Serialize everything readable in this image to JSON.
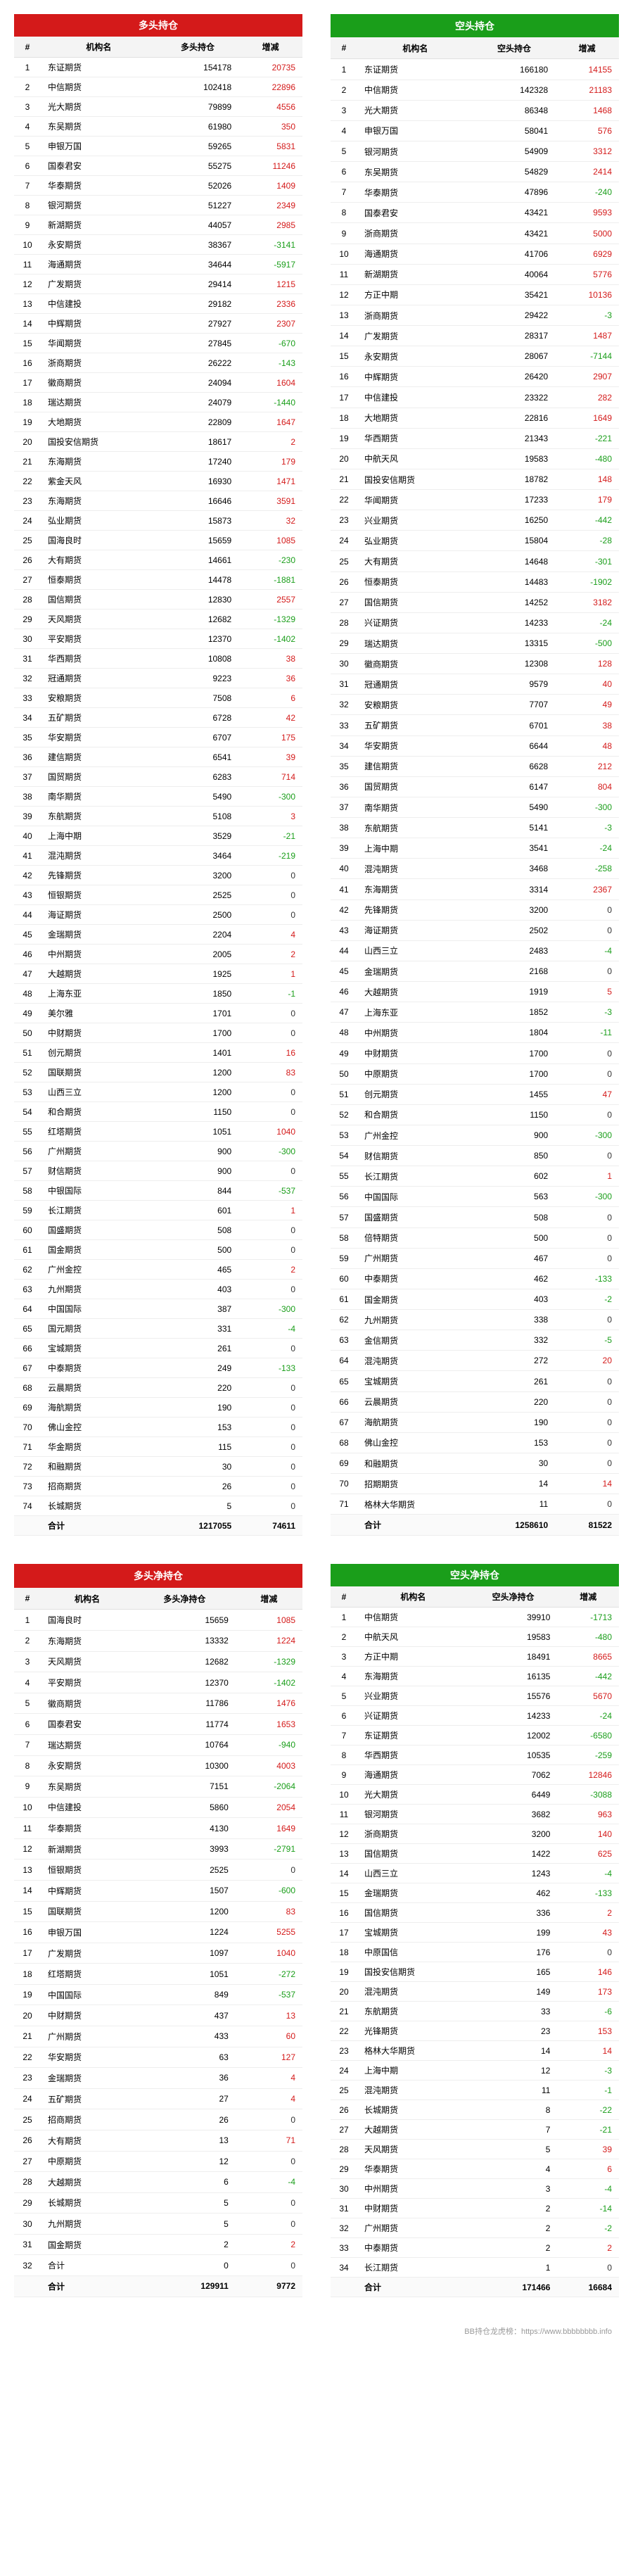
{
  "colors": {
    "red": "#d41a1a",
    "green": "#1a9e1a",
    "rowBorder": "#eeeeee",
    "hdrBg": "#f4f4f4"
  },
  "col_labels": {
    "idx": "#",
    "org": "机构名",
    "long_pos": "多头持仓",
    "short_pos": "空头持仓",
    "long_net": "多头净持仓",
    "short_net": "空头净持仓",
    "chg": "增减",
    "total": "合计"
  },
  "footer_text": "BB持仓龙虎榜：https://www.bbbbbbbb.info",
  "tables": [
    {
      "title": "多头持仓",
      "header_class": "hdr-red",
      "value_label": "long_pos",
      "rows": [
        [
          "1",
          "东证期货",
          154178,
          20735
        ],
        [
          "2",
          "中信期货",
          102418,
          22896
        ],
        [
          "3",
          "光大期货",
          79899,
          4556
        ],
        [
          "4",
          "东吴期货",
          61980,
          350
        ],
        [
          "5",
          "申银万国",
          59265,
          5831
        ],
        [
          "6",
          "国泰君安",
          55275,
          11246
        ],
        [
          "7",
          "华泰期货",
          52026,
          1409
        ],
        [
          "8",
          "银河期货",
          51227,
          2349
        ],
        [
          "9",
          "新湖期货",
          44057,
          2985
        ],
        [
          "10",
          "永安期货",
          38367,
          -3141
        ],
        [
          "11",
          "海通期货",
          34644,
          -5917
        ],
        [
          "12",
          "广发期货",
          29414,
          1215
        ],
        [
          "13",
          "中信建投",
          29182,
          2336
        ],
        [
          "14",
          "中辉期货",
          27927,
          2307
        ],
        [
          "15",
          "华闻期货",
          27845,
          -670
        ],
        [
          "16",
          "浙商期货",
          26222,
          -143
        ],
        [
          "17",
          "徽商期货",
          24094,
          1604
        ],
        [
          "18",
          "瑞达期货",
          24079,
          -1440
        ],
        [
          "19",
          "大地期货",
          22809,
          1647
        ],
        [
          "20",
          "国投安信期货",
          18617,
          2
        ],
        [
          "21",
          "东海期货",
          17240,
          179
        ],
        [
          "22",
          "紫金天风",
          16930,
          1471
        ],
        [
          "23",
          "东海期货",
          16646,
          3591
        ],
        [
          "24",
          "弘业期货",
          15873,
          32
        ],
        [
          "25",
          "国海良时",
          15659,
          1085
        ],
        [
          "26",
          "大有期货",
          14661,
          -230
        ],
        [
          "27",
          "恒泰期货",
          14478,
          -1881
        ],
        [
          "28",
          "国信期货",
          12830,
          2557
        ],
        [
          "29",
          "天风期货",
          12682,
          -1329
        ],
        [
          "30",
          "平安期货",
          12370,
          -1402
        ],
        [
          "31",
          "华西期货",
          10808,
          38
        ],
        [
          "32",
          "冠通期货",
          9223,
          36
        ],
        [
          "33",
          "安粮期货",
          7508,
          6
        ],
        [
          "34",
          "五矿期货",
          6728,
          42
        ],
        [
          "35",
          "华安期货",
          6707,
          175
        ],
        [
          "36",
          "建信期货",
          6541,
          39
        ],
        [
          "37",
          "国贸期货",
          6283,
          714
        ],
        [
          "38",
          "南华期货",
          5490,
          -300
        ],
        [
          "39",
          "东航期货",
          5108,
          3
        ],
        [
          "40",
          "上海中期",
          3529,
          -21
        ],
        [
          "41",
          "混沌期货",
          3464,
          -219
        ],
        [
          "42",
          "先锋期货",
          3200,
          0
        ],
        [
          "43",
          "恒银期货",
          2525,
          0
        ],
        [
          "44",
          "海证期货",
          2500,
          0
        ],
        [
          "45",
          "金瑞期货",
          2204,
          4
        ],
        [
          "46",
          "中州期货",
          2005,
          2
        ],
        [
          "47",
          "大越期货",
          1925,
          1
        ],
        [
          "48",
          "上海东亚",
          1850,
          -1
        ],
        [
          "49",
          "美尔雅",
          1701,
          0
        ],
        [
          "50",
          "中财期货",
          1700,
          0
        ],
        [
          "51",
          "创元期货",
          1401,
          16
        ],
        [
          "52",
          "国联期货",
          1200,
          83
        ],
        [
          "53",
          "山西三立",
          1200,
          0
        ],
        [
          "54",
          "和合期货",
          1150,
          0
        ],
        [
          "55",
          "红塔期货",
          1051,
          1040
        ],
        [
          "56",
          "广州期货",
          900,
          -300
        ],
        [
          "57",
          "财信期货",
          900,
          0
        ],
        [
          "58",
          "中银国际",
          844,
          -537
        ],
        [
          "59",
          "长江期货",
          601,
          1
        ],
        [
          "60",
          "国盛期货",
          508,
          0
        ],
        [
          "61",
          "国金期货",
          500,
          0
        ],
        [
          "62",
          "广州金控",
          465,
          2
        ],
        [
          "63",
          "九州期货",
          403,
          0
        ],
        [
          "64",
          "中国国际",
          387,
          -300
        ],
        [
          "65",
          "国元期货",
          331,
          -4
        ],
        [
          "66",
          "宝城期货",
          261,
          0
        ],
        [
          "67",
          "中泰期货",
          249,
          -133
        ],
        [
          "68",
          "云晨期货",
          220,
          0
        ],
        [
          "69",
          "海航期货",
          190,
          0
        ],
        [
          "70",
          "佛山金控",
          153,
          0
        ],
        [
          "71",
          "华金期货",
          115,
          0
        ],
        [
          "72",
          "和融期货",
          30,
          0
        ],
        [
          "73",
          "招商期货",
          26,
          0
        ],
        [
          "74",
          "长城期货",
          5,
          0
        ]
      ],
      "total": [
        1217055,
        74611
      ]
    },
    {
      "title": "空头持仓",
      "header_class": "hdr-green",
      "value_label": "short_pos",
      "rows": [
        [
          "1",
          "东证期货",
          166180,
          14155
        ],
        [
          "2",
          "中信期货",
          142328,
          21183
        ],
        [
          "3",
          "光大期货",
          86348,
          1468
        ],
        [
          "4",
          "申银万国",
          58041,
          576
        ],
        [
          "5",
          "银河期货",
          54909,
          3312
        ],
        [
          "6",
          "东吴期货",
          54829,
          2414
        ],
        [
          "7",
          "华泰期货",
          47896,
          -240
        ],
        [
          "8",
          "国泰君安",
          43421,
          9593
        ],
        [
          "9",
          "浙商期货",
          43421,
          5000
        ],
        [
          "10",
          "海通期货",
          41706,
          6929
        ],
        [
          "11",
          "新湖期货",
          40064,
          5776
        ],
        [
          "12",
          "方正中期",
          35421,
          10136
        ],
        [
          "13",
          "浙商期货",
          29422,
          -3
        ],
        [
          "14",
          "广发期货",
          28317,
          1487
        ],
        [
          "15",
          "永安期货",
          28067,
          -7144
        ],
        [
          "16",
          "中辉期货",
          26420,
          2907
        ],
        [
          "17",
          "中信建投",
          23322,
          282
        ],
        [
          "18",
          "大地期货",
          22816,
          1649
        ],
        [
          "19",
          "华西期货",
          21343,
          -221
        ],
        [
          "20",
          "中航天风",
          19583,
          -480
        ],
        [
          "21",
          "国投安信期货",
          18782,
          148
        ],
        [
          "22",
          "华闻期货",
          17233,
          179
        ],
        [
          "23",
          "兴业期货",
          16250,
          -442
        ],
        [
          "24",
          "弘业期货",
          15804,
          -28
        ],
        [
          "25",
          "大有期货",
          14648,
          -301
        ],
        [
          "26",
          "恒泰期货",
          14483,
          -1902
        ],
        [
          "27",
          "国信期货",
          14252,
          3182
        ],
        [
          "28",
          "兴证期货",
          14233,
          -24
        ],
        [
          "29",
          "瑞达期货",
          13315,
          -500
        ],
        [
          "30",
          "徽商期货",
          12308,
          128
        ],
        [
          "31",
          "冠通期货",
          9579,
          40
        ],
        [
          "32",
          "安粮期货",
          7707,
          49
        ],
        [
          "33",
          "五矿期货",
          6701,
          38
        ],
        [
          "34",
          "华安期货",
          6644,
          48
        ],
        [
          "35",
          "建信期货",
          6628,
          212
        ],
        [
          "36",
          "国贸期货",
          6147,
          804
        ],
        [
          "37",
          "南华期货",
          5490,
          -300
        ],
        [
          "38",
          "东航期货",
          5141,
          -3
        ],
        [
          "39",
          "上海中期",
          3541,
          -24
        ],
        [
          "40",
          "混沌期货",
          3468,
          -258
        ],
        [
          "41",
          "东海期货",
          3314,
          2367
        ],
        [
          "42",
          "先锋期货",
          3200,
          0
        ],
        [
          "43",
          "海证期货",
          2502,
          0
        ],
        [
          "44",
          "山西三立",
          2483,
          -4
        ],
        [
          "45",
          "金瑞期货",
          2168,
          0
        ],
        [
          "46",
          "大越期货",
          1919,
          5
        ],
        [
          "47",
          "上海东亚",
          1852,
          -3
        ],
        [
          "48",
          "中州期货",
          1804,
          -11
        ],
        [
          "49",
          "中财期货",
          1700,
          0
        ],
        [
          "50",
          "中原期货",
          1700,
          0
        ],
        [
          "51",
          "创元期货",
          1455,
          47
        ],
        [
          "52",
          "和合期货",
          1150,
          0
        ],
        [
          "53",
          "广州金控",
          900,
          -300
        ],
        [
          "54",
          "财信期货",
          850,
          0
        ],
        [
          "55",
          "长江期货",
          602,
          1
        ],
        [
          "56",
          "中国国际",
          563,
          -300
        ],
        [
          "57",
          "国盛期货",
          508,
          0
        ],
        [
          "58",
          "倍特期货",
          500,
          0
        ],
        [
          "59",
          "广州期货",
          467,
          0
        ],
        [
          "60",
          "中泰期货",
          462,
          -133
        ],
        [
          "61",
          "国金期货",
          403,
          -2
        ],
        [
          "62",
          "九州期货",
          338,
          0
        ],
        [
          "63",
          "金信期货",
          332,
          -5
        ],
        [
          "64",
          "混沌期货",
          272,
          20
        ],
        [
          "65",
          "宝城期货",
          261,
          0
        ],
        [
          "66",
          "云晨期货",
          220,
          0
        ],
        [
          "67",
          "海航期货",
          190,
          0
        ],
        [
          "68",
          "佛山金控",
          153,
          0
        ],
        [
          "69",
          "和融期货",
          30,
          0
        ],
        [
          "70",
          "招期期货",
          14,
          14
        ],
        [
          "71",
          "格林大华期货",
          11,
          0
        ]
      ],
      "total": [
        1258610,
        81522
      ]
    },
    {
      "title": "多头净持仓",
      "header_class": "hdr-red",
      "value_label": "long_net",
      "rows": [
        [
          "1",
          "国海良时",
          15659,
          1085
        ],
        [
          "2",
          "东海期货",
          13332,
          1224
        ],
        [
          "3",
          "天风期货",
          12682,
          -1329
        ],
        [
          "4",
          "平安期货",
          12370,
          -1402
        ],
        [
          "5",
          "徽商期货",
          11786,
          1476
        ],
        [
          "6",
          "国泰君安",
          11774,
          1653
        ],
        [
          "7",
          "瑞达期货",
          10764,
          -940
        ],
        [
          "8",
          "永安期货",
          10300,
          4003
        ],
        [
          "9",
          "东吴期货",
          7151,
          -2064
        ],
        [
          "10",
          "中信建投",
          5860,
          2054
        ],
        [
          "11",
          "华泰期货",
          4130,
          1649
        ],
        [
          "12",
          "新湖期货",
          3993,
          -2791
        ],
        [
          "13",
          "恒银期货",
          2525,
          0
        ],
        [
          "14",
          "中辉期货",
          1507,
          -600
        ],
        [
          "15",
          "国联期货",
          1200,
          83
        ],
        [
          "16",
          "申银万国",
          1224,
          5255
        ],
        [
          "17",
          "广发期货",
          1097,
          1040
        ],
        [
          "18",
          "红塔期货",
          1051,
          -272
        ],
        [
          "19",
          "中国国际",
          849,
          -537
        ],
        [
          "20",
          "中财期货",
          437,
          13
        ],
        [
          "21",
          "广州期货",
          433,
          60
        ],
        [
          "22",
          "华安期货",
          63,
          127
        ],
        [
          "23",
          "金瑞期货",
          36,
          4
        ],
        [
          "24",
          "五矿期货",
          27,
          4
        ],
        [
          "25",
          "招商期货",
          26,
          0
        ],
        [
          "26",
          "大有期货",
          13,
          71
        ],
        [
          "27",
          "中原期货",
          12,
          0
        ],
        [
          "28",
          "大越期货",
          6,
          -4
        ],
        [
          "29",
          "长城期货",
          5,
          0
        ],
        [
          "30",
          "九州期货",
          5,
          0
        ],
        [
          "31",
          "国金期货",
          2,
          2
        ],
        [
          "32",
          "合计",
          0,
          0
        ]
      ],
      "total": [
        129911,
        9772
      ]
    },
    {
      "title": "空头净持仓",
      "header_class": "hdr-green",
      "value_label": "short_net",
      "rows": [
        [
          "1",
          "中信期货",
          39910,
          -1713
        ],
        [
          "2",
          "中航天风",
          19583,
          -480
        ],
        [
          "3",
          "方正中期",
          18491,
          8665
        ],
        [
          "4",
          "东海期货",
          16135,
          -442
        ],
        [
          "5",
          "兴业期货",
          15576,
          5670
        ],
        [
          "6",
          "兴证期货",
          14233,
          -24
        ],
        [
          "7",
          "东证期货",
          12002,
          -6580
        ],
        [
          "8",
          "华西期货",
          10535,
          -259
        ],
        [
          "9",
          "海通期货",
          7062,
          12846
        ],
        [
          "10",
          "光大期货",
          6449,
          -3088
        ],
        [
          "11",
          "银河期货",
          3682,
          963
        ],
        [
          "12",
          "浙商期货",
          3200,
          140
        ],
        [
          "13",
          "国信期货",
          1422,
          625
        ],
        [
          "14",
          "山西三立",
          1243,
          -4
        ],
        [
          "15",
          "金瑞期货",
          462,
          -133
        ],
        [
          "16",
          "国信期货",
          336,
          2
        ],
        [
          "17",
          "宝城期货",
          199,
          43
        ],
        [
          "18",
          "中原国信",
          176,
          0
        ],
        [
          "19",
          "国投安信期货",
          165,
          146
        ],
        [
          "20",
          "混沌期货",
          149,
          173
        ],
        [
          "21",
          "东航期货",
          33,
          -6
        ],
        [
          "22",
          "光锋期货",
          23,
          153
        ],
        [
          "23",
          "格林大华期货",
          14,
          14
        ],
        [
          "24",
          "上海中期",
          12,
          -3
        ],
        [
          "25",
          "混沌期货",
          11,
          -1
        ],
        [
          "26",
          "长城期货",
          8,
          -22
        ],
        [
          "27",
          "大越期货",
          7,
          -21
        ],
        [
          "28",
          "天风期货",
          5,
          39
        ],
        [
          "29",
          "华泰期货",
          4,
          6
        ],
        [
          "30",
          "中州期货",
          3,
          -4
        ],
        [
          "31",
          "中财期货",
          2,
          -14
        ],
        [
          "32",
          "广州期货",
          2,
          -2
        ],
        [
          "33",
          "中泰期货",
          2,
          2
        ],
        [
          "34",
          "长江期货",
          1,
          0
        ]
      ],
      "total": [
        171466,
        16684
      ]
    }
  ]
}
